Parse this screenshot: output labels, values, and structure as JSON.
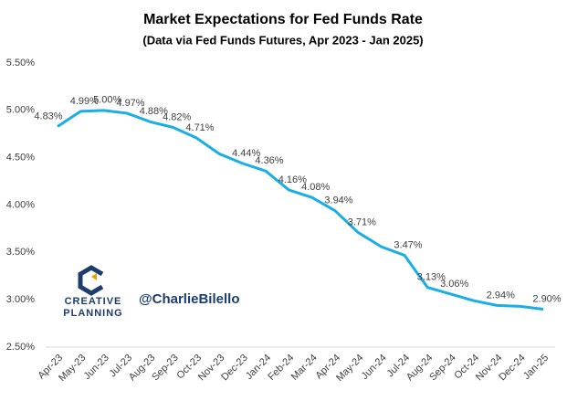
{
  "chart_data": {
    "type": "line",
    "title": "Market Expectations for Fed Funds Rate",
    "subtitle": "(Data via Fed Funds Futures, Apr 2023 - Jan 2025)",
    "categories": [
      "Apr-23",
      "May-23",
      "Jun-23",
      "Jul-23",
      "Aug-23",
      "Sep-23",
      "Oct-23",
      "Nov-23",
      "Dec-23",
      "Jan-24",
      "Feb-24",
      "Mar-24",
      "Apr-24",
      "May-24",
      "Jun-24",
      "Jul-24",
      "Aug-24",
      "Sep-24",
      "Oct-24",
      "Nov-24",
      "Dec-24",
      "Jan-25"
    ],
    "series": [
      {
        "name": "Fed Funds Rate",
        "color": "#1aaee8",
        "values": [
          4.83,
          4.99,
          5.0,
          4.97,
          4.88,
          4.82,
          4.71,
          4.54,
          4.44,
          4.36,
          4.16,
          4.08,
          3.94,
          3.71,
          3.56,
          3.47,
          3.13,
          3.06,
          2.99,
          2.94,
          2.93,
          2.9
        ],
        "value_labels": [
          "4.83%",
          "4.99%",
          "5.00%",
          "4.97%",
          "4.88%",
          "4.82%",
          "4.71%",
          null,
          "4.44%",
          "4.36%",
          "4.16%",
          "4.08%",
          "3.94%",
          "3.71%",
          null,
          "3.47%",
          "3.13%",
          "3.06%",
          null,
          "2.94%",
          null,
          "2.90%"
        ]
      }
    ],
    "ylim": [
      2.5,
      5.5
    ],
    "yticks": [
      {
        "value": 2.5,
        "label": "2.50%"
      },
      {
        "value": 3.0,
        "label": "3.00%"
      },
      {
        "value": 3.5,
        "label": "3.50%"
      },
      {
        "value": 4.0,
        "label": "4.00%"
      },
      {
        "value": 4.5,
        "label": "4.50%"
      },
      {
        "value": 5.0,
        "label": "5.00%"
      },
      {
        "value": 5.5,
        "label": "5.50%"
      }
    ],
    "annotations": [
      "CREATIVE",
      "PLANNING",
      "@CharlieBilello"
    ]
  }
}
